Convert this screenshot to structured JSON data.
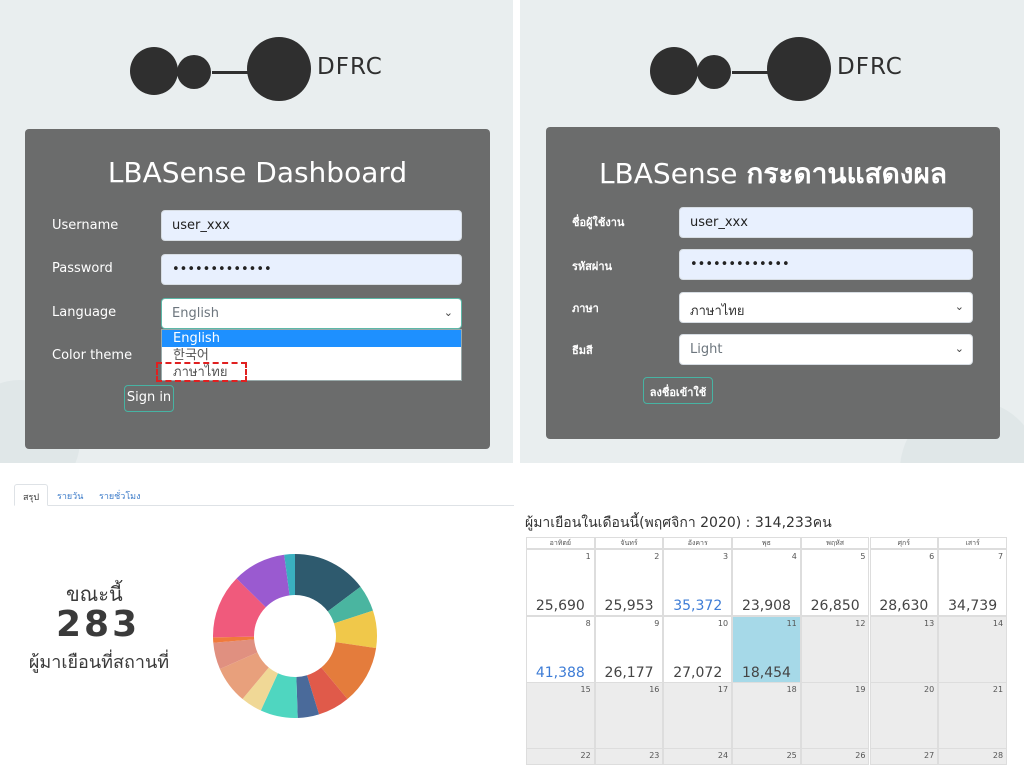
{
  "login_en": {
    "logo_text": "DFRC",
    "title": "LBASense Dashboard",
    "username_label": "Username",
    "username_value": "user_xxx",
    "password_label": "Password",
    "password_value": "•••••••••••••",
    "language_label": "Language",
    "language_value": "English",
    "color_theme_label": "Color theme",
    "sign_in": "Sign in",
    "language_options": [
      "English",
      "한국어",
      "ภาษาไทย"
    ]
  },
  "login_th": {
    "logo_text": "DFRC",
    "title_prefix": "LBASense ",
    "title_bold": "กระดานแสดงผล",
    "username_label": "ชื่อผู้ใช้งาน",
    "username_value": "user_xxx",
    "password_label": "รหัสผ่าน",
    "password_value": "•••••••••••••",
    "language_label": "ภาษา",
    "language_value": "ภาษาไทย",
    "theme_label": "ธีมสี",
    "theme_value": "Light",
    "sign_in": "ลงชื่อเข้าใช้"
  },
  "dashboard": {
    "tabs": [
      "สรุป",
      "รายวัน",
      "รายชั่วโมง"
    ],
    "now_label": "ขณะนี้",
    "now_count": "283",
    "now_sub": "ผู้มาเยือนที่สถานที่",
    "calendar_title": "ผู้มาเยือนในเดือนนี้(พฤศจิกา 2020) : 314,233คน",
    "weekdays": [
      "อาทิตย์",
      "จันทร์",
      "อังคาร",
      "พุธ",
      "พฤหัส",
      "ศุกร์",
      "เสาร์"
    ],
    "days": [
      {
        "day": "1",
        "count": "25,690"
      },
      {
        "day": "2",
        "count": "25,953"
      },
      {
        "day": "3",
        "count": "35,372",
        "highlight": "blue"
      },
      {
        "day": "4",
        "count": "23,908"
      },
      {
        "day": "5",
        "count": "26,850"
      },
      {
        "day": "6",
        "count": "28,630"
      },
      {
        "day": "7",
        "count": "34,739"
      },
      {
        "day": "8",
        "count": "41,388",
        "highlight": "blue"
      },
      {
        "day": "9",
        "count": "26,177"
      },
      {
        "day": "10",
        "count": "27,072"
      },
      {
        "day": "11",
        "count": "18,454",
        "today": true
      },
      {
        "day": "12"
      },
      {
        "day": "13"
      },
      {
        "day": "14"
      },
      {
        "day": "15"
      },
      {
        "day": "16"
      },
      {
        "day": "17"
      },
      {
        "day": "18"
      },
      {
        "day": "19"
      },
      {
        "day": "20"
      },
      {
        "day": "21"
      },
      {
        "day": "22"
      },
      {
        "day": "23"
      },
      {
        "day": "24"
      },
      {
        "day": "25"
      },
      {
        "day": "26"
      },
      {
        "day": "27"
      },
      {
        "day": "28"
      }
    ],
    "donut_colors": [
      "#2e5a6e",
      "#4ab5a0",
      "#f0c84a",
      "#e47c3c",
      "#e05a4a",
      "#4a6a9a",
      "#4fd6c0",
      "#f0d896",
      "#e8a07c",
      "#e09080",
      "#f07a3c",
      "#f05a7c",
      "#9a5ad0",
      "#3ab0c0"
    ],
    "donut_values": [
      14,
      5,
      7,
      11,
      6,
      4,
      7,
      4,
      7,
      5,
      1,
      12,
      10,
      2
    ]
  }
}
